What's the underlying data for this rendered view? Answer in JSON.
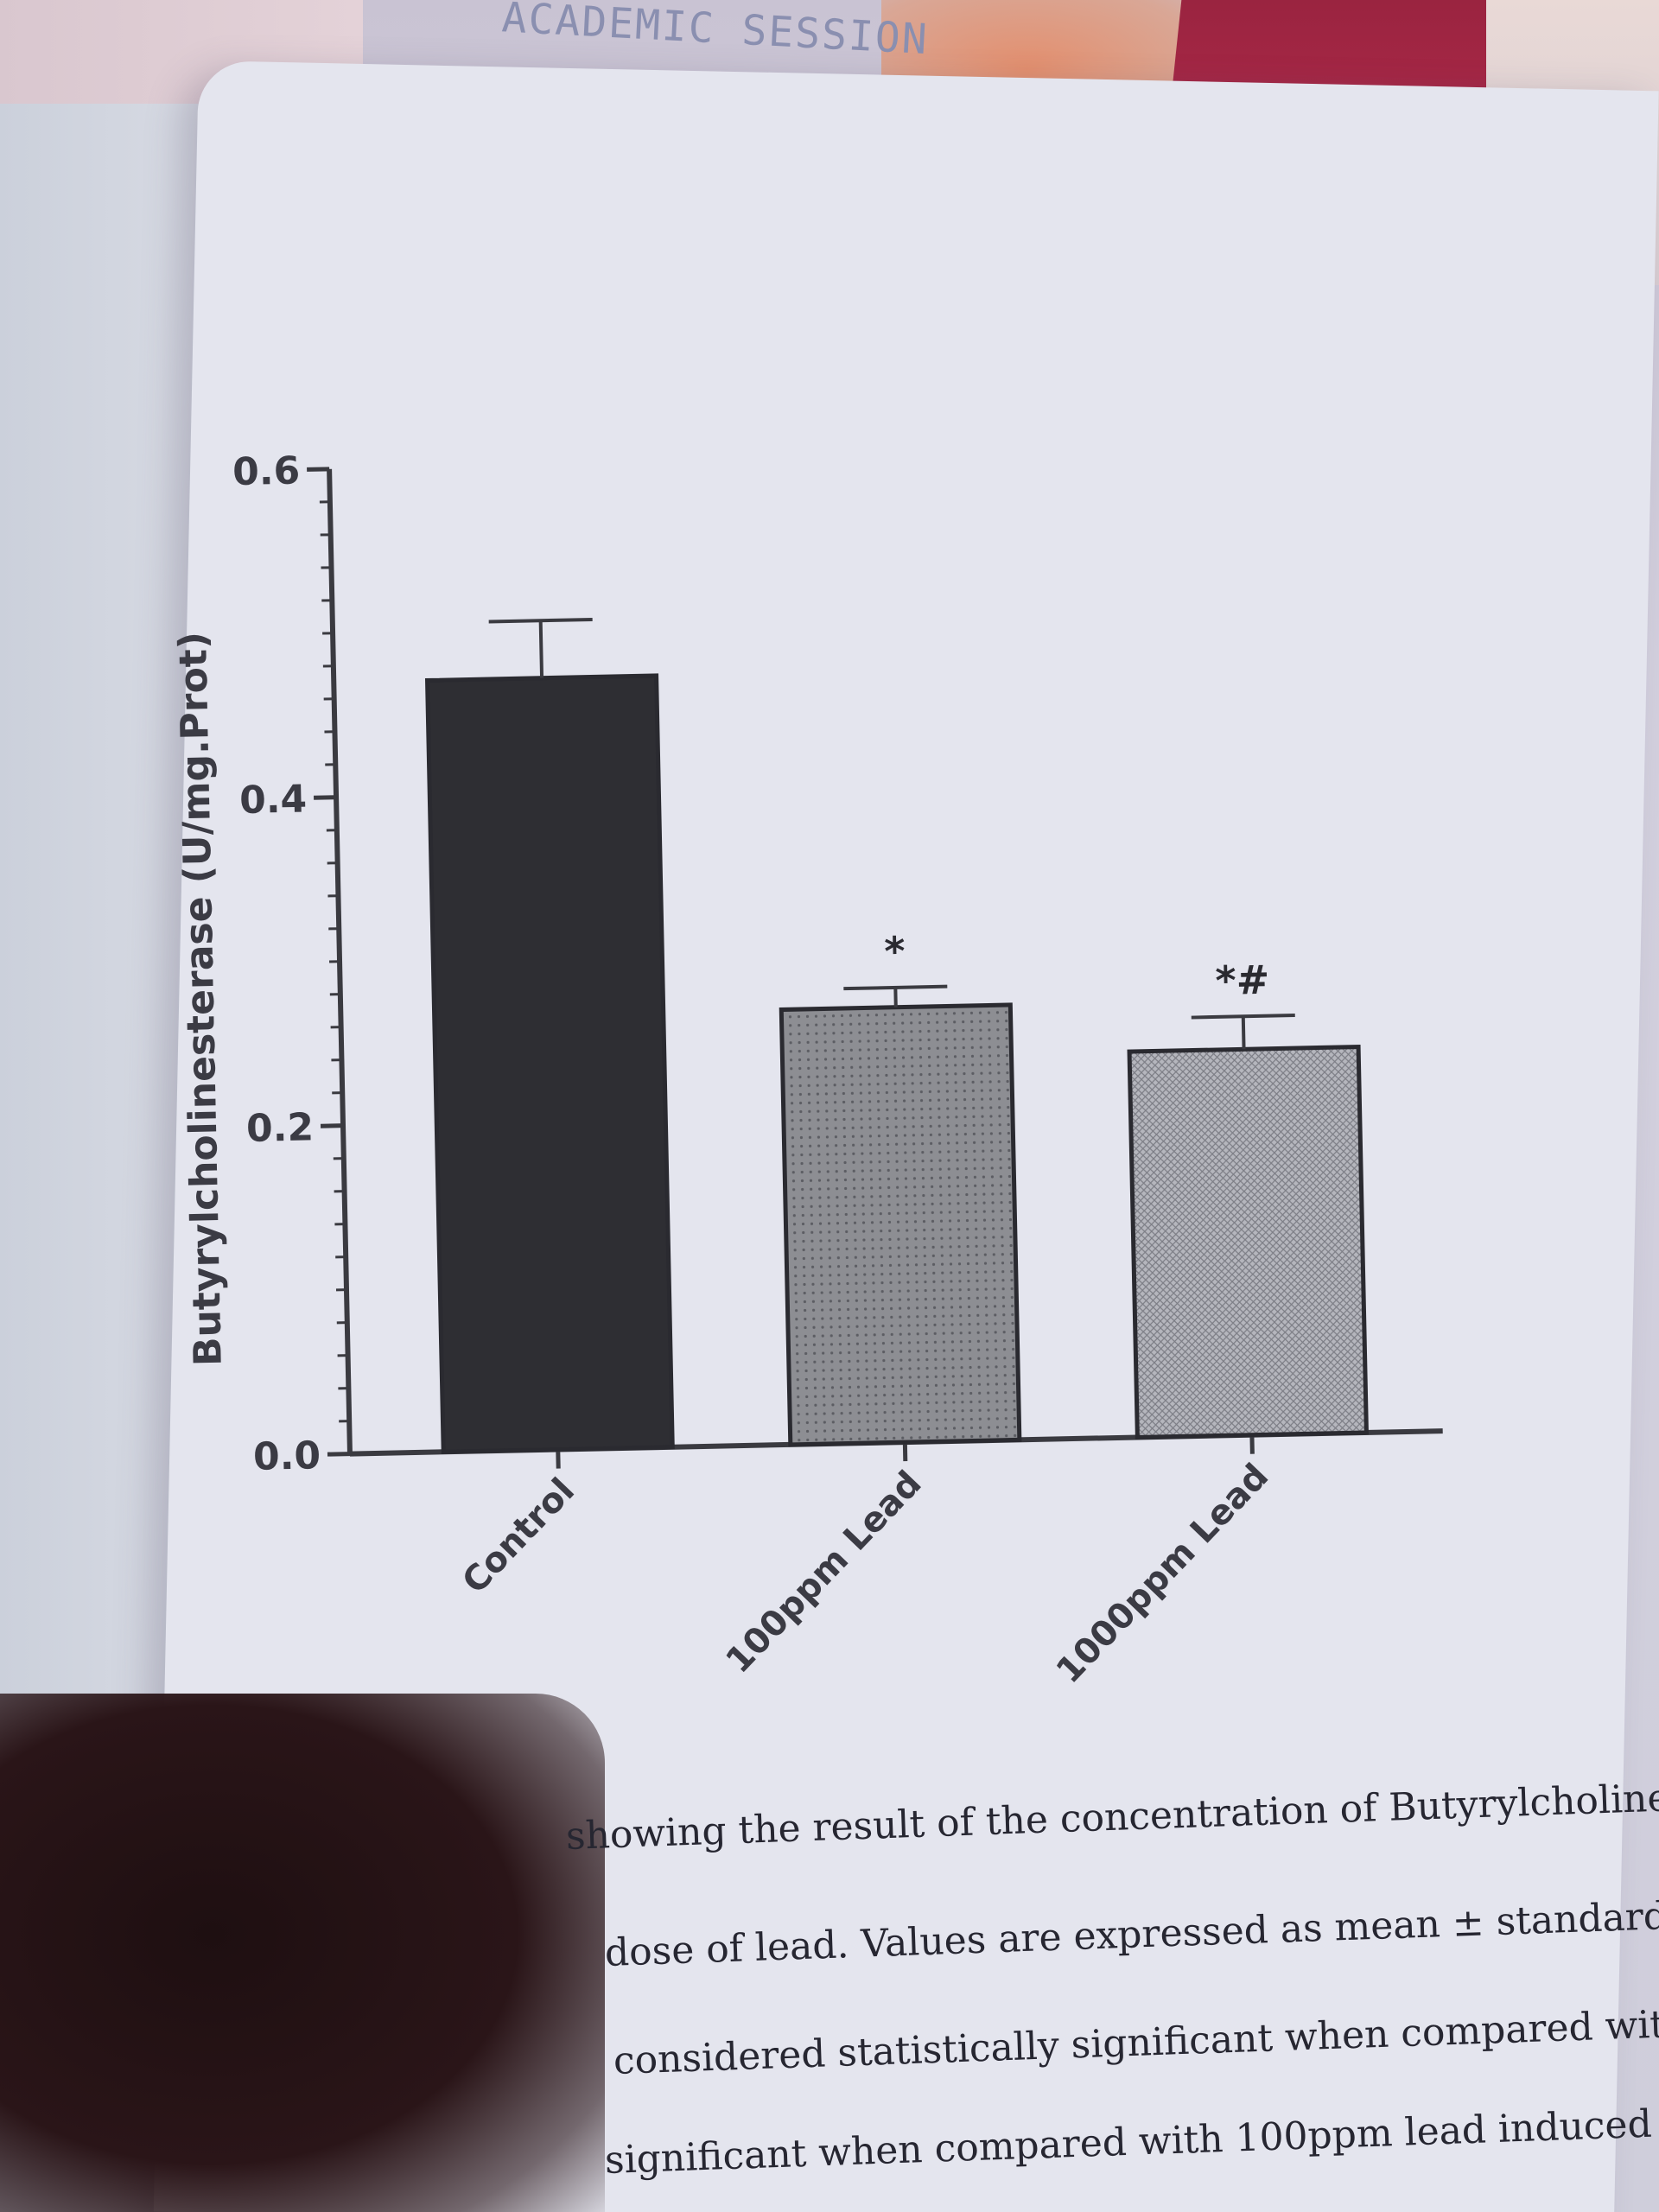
{
  "header_text": "ACADEMIC SESSION",
  "chart_data": {
    "type": "bar",
    "ylabel": "Butyrylcholinesterase (U/mg.Prot)",
    "ylim": [
      0,
      0.6
    ],
    "yticks": [
      "0.0",
      "0.2",
      "0.4",
      "0.6"
    ],
    "categories": [
      "Control",
      "100ppm Lead",
      "1000ppm Lead"
    ],
    "values": [
      0.47,
      0.265,
      0.235
    ],
    "errors": [
      0.035,
      0.012,
      0.02
    ],
    "significance": [
      "",
      "*",
      "*#"
    ],
    "colors": [
      "#2e2e33",
      "#8d8e93",
      "#b5b6bd"
    ],
    "patterns": [
      "solid",
      "dots",
      "crosshatch"
    ],
    "grid": false
  },
  "caption": {
    "line1": "showing the result of the concentration of Butyrylcholinesteras",
    "line2": "dose of lead. Values are expressed as mean ± standard deviatio",
    "line3": "considered statistically significant when compared with contr",
    "line4": "significant when compared with 100ppm lead induced"
  }
}
